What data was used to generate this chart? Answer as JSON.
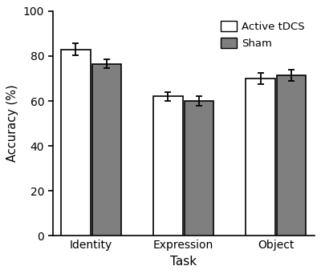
{
  "categories": [
    "Identity",
    "Expression",
    "Object"
  ],
  "active_tdcs_values": [
    83,
    62,
    70
  ],
  "sham_values": [
    76.5,
    60,
    71.5
  ],
  "active_tdcs_errors": [
    2.5,
    2.0,
    2.5
  ],
  "sham_errors": [
    2.0,
    2.0,
    2.5
  ],
  "active_tdcs_color": "#FFFFFF",
  "sham_color": "#7f7f7f",
  "bar_edge_color": "#000000",
  "bar_width": 0.38,
  "ylabel": "Accuracy (%)",
  "xlabel": "Task",
  "ylim": [
    0,
    100
  ],
  "yticks": [
    0,
    20,
    40,
    60,
    80,
    100
  ],
  "legend_labels": [
    "Active tDCS",
    "Sham"
  ],
  "linewidth": 1.2,
  "capsize": 3,
  "error_linewidth": 1.3,
  "figsize": [
    4.0,
    3.42
  ],
  "dpi": 100,
  "group_centers": [
    0.5,
    1.7,
    2.9
  ],
  "xlim": [
    0.0,
    3.4
  ]
}
